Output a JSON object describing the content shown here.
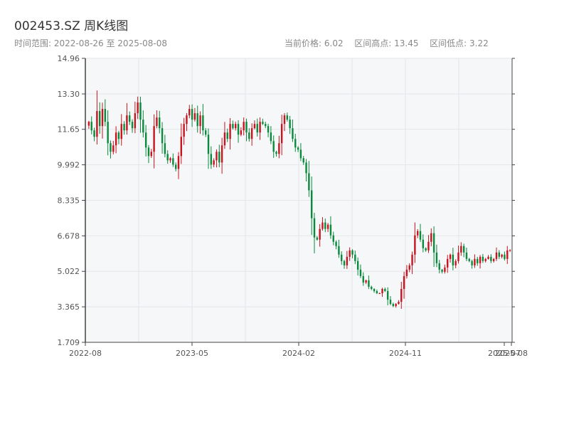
{
  "header": {
    "title": "002453.SZ 周K线图",
    "range_label": "时间范围:",
    "range_start": "2022-08-26",
    "range_sep": "至",
    "range_end": "2025-08-08",
    "price_label": "当前价格:",
    "price_value": "6.02",
    "high_label": "区间高点:",
    "high_value": "13.45",
    "low_label": "区间低点:",
    "low_value": "3.22"
  },
  "colors": {
    "up": "#c8141e",
    "down": "#0a8a3c",
    "plot_bg": "#f6f7f9",
    "grid": "#e4e6ea",
    "axis": "#444444"
  },
  "chart_data": {
    "type": "candlestick",
    "ylim": [
      1.709,
      14.96
    ],
    "yticks": [
      "14.96",
      "13.30",
      "11.65",
      "9.992",
      "8.335",
      "6.678",
      "5.022",
      "3.365",
      "1.709"
    ],
    "xticks": [
      "2022-08",
      "2023-05",
      "2024-02",
      "2024-11",
      "2025-07",
      "2025-08"
    ],
    "grid": true,
    "closes": [
      12.0,
      11.6,
      11.3,
      12.5,
      11.8,
      12.6,
      12.0,
      11.0,
      10.6,
      10.9,
      11.5,
      11.2,
      11.9,
      11.6,
      12.3,
      12.0,
      11.7,
      12.4,
      12.9,
      12.1,
      11.5,
      10.8,
      10.4,
      10.6,
      11.8,
      12.2,
      11.7,
      11.0,
      10.5,
      10.2,
      10.3,
      10.0,
      9.8,
      10.4,
      11.3,
      11.9,
      12.3,
      12.6,
      12.1,
      12.4,
      11.8,
      12.3,
      11.6,
      11.4,
      10.5,
      10.0,
      10.2,
      10.6,
      10.1,
      10.9,
      11.5,
      11.2,
      11.9,
      11.7,
      11.9,
      11.4,
      11.6,
      12.0,
      11.5,
      11.2,
      11.7,
      11.9,
      11.5,
      12.0,
      11.9,
      11.8,
      11.5,
      11.1,
      10.6,
      10.5,
      11.0,
      11.9,
      12.3,
      12.1,
      11.7,
      11.2,
      10.8,
      10.7,
      10.3,
      10.1,
      9.6,
      8.8,
      7.5,
      6.6,
      6.5,
      7.0,
      7.3,
      7.0,
      7.2,
      6.7,
      6.4,
      6.2,
      5.8,
      5.5,
      5.3,
      5.7,
      6.0,
      5.8,
      5.5,
      5.1,
      4.8,
      4.5,
      4.6,
      4.3,
      4.2,
      4.1,
      4.0,
      4.0,
      4.2,
      4.1,
      3.7,
      3.5,
      3.4,
      3.5,
      3.6,
      4.2,
      4.8,
      5.1,
      5.3,
      5.8,
      6.7,
      6.9,
      6.5,
      6.1,
      6.0,
      6.4,
      6.8,
      5.9,
      5.4,
      5.1,
      5.0,
      5.2,
      5.6,
      5.8,
      5.3,
      5.5,
      5.9,
      6.2,
      5.9,
      5.6,
      5.5,
      5.3,
      5.6,
      5.4,
      5.7,
      5.5,
      5.6,
      5.7,
      5.5,
      5.6,
      5.9,
      5.7,
      5.8,
      5.6,
      6.0,
      6.02
    ]
  }
}
